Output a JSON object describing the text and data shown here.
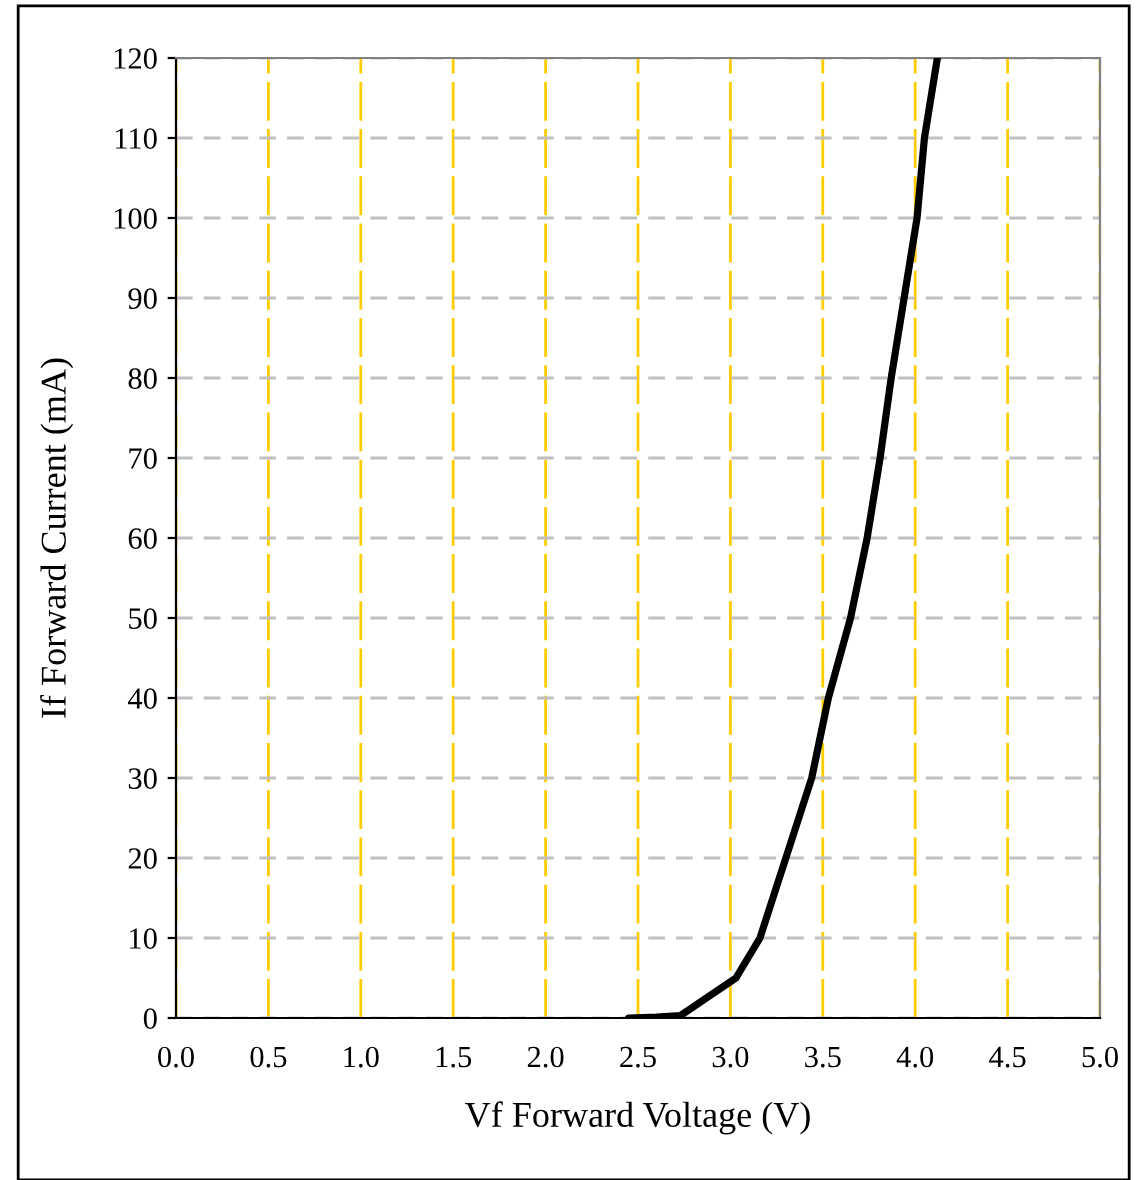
{
  "chart_data": {
    "type": "line",
    "xlabel": "Vf Forward Voltage (V)",
    "ylabel": "If Forward Current (mA)",
    "x": [
      2.45,
      2.6,
      2.73,
      2.87,
      3.03,
      3.16,
      3.3,
      3.44,
      3.53,
      3.65,
      3.74,
      3.81,
      3.87,
      3.94,
      4.01,
      4.05,
      4.12
    ],
    "series": [
      {
        "color": "#000000",
        "values": [
          0,
          0.1,
          0.3,
          2.5,
          5,
          10,
          20,
          30,
          40,
          50,
          60,
          70,
          80,
          90,
          100,
          110,
          120
        ]
      }
    ],
    "xlim": [
      0,
      5
    ],
    "ylim": [
      0,
      120
    ],
    "xticks": [
      {
        "value": 0,
        "label": "0.0"
      },
      0.5,
      {
        "value": 1,
        "label": "1.0"
      },
      1.5,
      {
        "value": 2,
        "label": "2.0"
      },
      2.5,
      {
        "value": 3,
        "label": "3.0"
      },
      3.5,
      {
        "value": 4,
        "label": "4.0"
      },
      4.5,
      {
        "value": 5,
        "label": "5.0"
      }
    ],
    "yticks": [
      0,
      10,
      20,
      30,
      40,
      50,
      60,
      70,
      80,
      90,
      100,
      110,
      120
    ],
    "grid": true,
    "marker": "none",
    "line_style": "solid",
    "legend": false
  }
}
